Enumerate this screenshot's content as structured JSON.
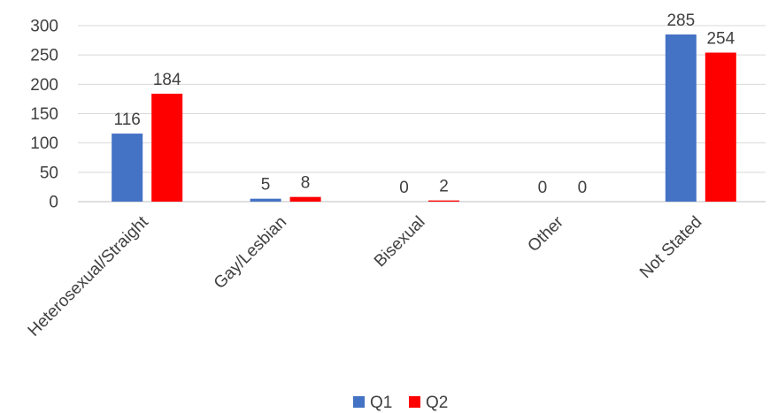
{
  "chart_data": {
    "type": "bar",
    "categories": [
      "Heterosexual/Straight",
      "Gay/Lesbian",
      "Bisexual",
      "Other",
      "Not Stated"
    ],
    "series": [
      {
        "name": "Q1",
        "values": [
          116,
          5,
          0,
          0,
          285
        ],
        "color": "#4472C4"
      },
      {
        "name": "Q2",
        "values": [
          184,
          8,
          2,
          0,
          254
        ],
        "color": "#FF0000"
      }
    ],
    "y_ticks": [
      "0",
      "50",
      "100",
      "150",
      "200",
      "250",
      "300"
    ],
    "ylim": [
      0,
      300
    ],
    "grid": true,
    "legend_position": "bottom",
    "category_label_rotation": "-45deg",
    "data_labels": true
  }
}
